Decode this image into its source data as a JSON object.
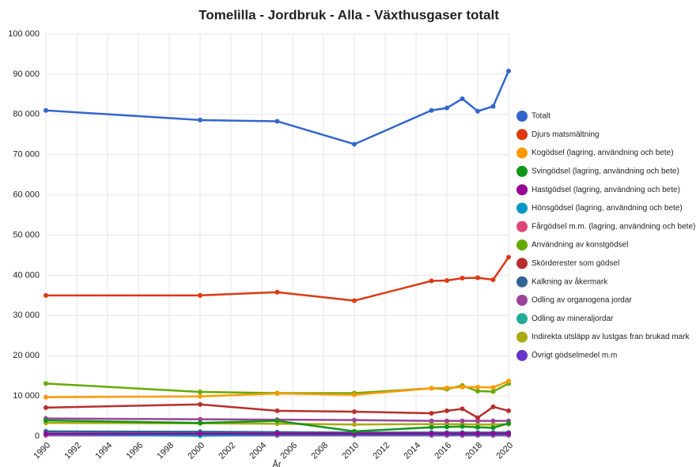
{
  "chart_data": {
    "type": "line",
    "title": "Tomelilla - Jordbruk - Alla - Växthusgaser totalt",
    "x_label": "År",
    "x": [
      1990,
      2000,
      2005,
      2010,
      2015,
      2016,
      2017,
      2018,
      2019,
      2020
    ],
    "xlim": [
      1990,
      2020
    ],
    "xticks": [
      1990,
      1992,
      1994,
      1996,
      1998,
      2000,
      2002,
      2004,
      2006,
      2008,
      2010,
      2012,
      2014,
      2016,
      2018,
      2020
    ],
    "ylim": [
      0,
      100000
    ],
    "yticks": [
      0,
      {
        "value": 10000,
        "label": "10 000"
      },
      {
        "value": 20000,
        "label": "20 000"
      },
      {
        "value": 30000,
        "label": "30 000"
      },
      {
        "value": 40000,
        "label": "40 000"
      },
      {
        "value": 50000,
        "label": "50 000"
      },
      {
        "value": 60000,
        "label": "60 000"
      },
      {
        "value": 70000,
        "label": "70 000"
      },
      {
        "value": 80000,
        "label": "80 000"
      },
      {
        "value": 90000,
        "label": "90 000"
      },
      {
        "value": 100000,
        "label": "100 000"
      }
    ],
    "grid": true,
    "legend": "right",
    "series": [
      {
        "name": "Totalt",
        "color": "#3366cc",
        "values": [
          81000,
          78600,
          78300,
          72600,
          81000,
          81600,
          83900,
          80800,
          82000,
          90800
        ]
      },
      {
        "name": "Djurs matsmältning",
        "color": "#dc3912",
        "values": [
          35000,
          35000,
          35800,
          33700,
          38600,
          38700,
          39300,
          39400,
          38900,
          44500
        ]
      },
      {
        "name": "Kogödsel (lagring, användning och bete)",
        "color": "#ff9900",
        "values": [
          9700,
          9900,
          10600,
          10300,
          11900,
          12000,
          12200,
          12200,
          12100,
          13700
        ]
      },
      {
        "name": "Svingödsel (lagring, användning och bete)",
        "color": "#109618",
        "values": [
          3900,
          3300,
          3800,
          1200,
          2200,
          2300,
          2400,
          2200,
          2100,
          3200
        ]
      },
      {
        "name": "Hastgödsel (lagring, användning och bete)",
        "color": "#990099",
        "values": [
          600,
          600,
          600,
          600,
          600,
          600,
          600,
          600,
          600,
          600
        ]
      },
      {
        "name": "Hönsgödsel (lagring, användning och bete)",
        "color": "#0099c6",
        "values": [
          500,
          100,
          400,
          400,
          400,
          400,
          400,
          400,
          400,
          400
        ]
      },
      {
        "name": "Fårgödsel m.m. (lagring, användning och bete)",
        "color": "#dd4477",
        "values": [
          300,
          300,
          300,
          300,
          300,
          300,
          300,
          300,
          300,
          300
        ]
      },
      {
        "name": "Användning av konstgödsel",
        "color": "#66aa00",
        "values": [
          13100,
          11000,
          10700,
          10700,
          11900,
          11700,
          12600,
          11200,
          11100,
          13100
        ]
      },
      {
        "name": "Skörderester som gödsel",
        "color": "#b82e2e",
        "values": [
          7100,
          7900,
          6300,
          6100,
          5700,
          6300,
          6800,
          4600,
          7300,
          6300
        ]
      },
      {
        "name": "Kalkning av åkermark",
        "color": "#316395",
        "values": [
          1200,
          1100,
          1000,
          900,
          900,
          900,
          900,
          900,
          900,
          900
        ]
      },
      {
        "name": "Odling av organogena jordar",
        "color": "#994499",
        "values": [
          4400,
          4200,
          4100,
          4000,
          3800,
          3800,
          3800,
          3800,
          3800,
          3800
        ]
      },
      {
        "name": "Odling av mineraljordar",
        "color": "#22aa99",
        "values": [
          700,
          700,
          700,
          700,
          700,
          700,
          700,
          700,
          700,
          700
        ]
      },
      {
        "name": "Indirekta utsläpp av lustgas fran brukad mark",
        "color": "#aaaa11",
        "values": [
          3300,
          3200,
          3100,
          2900,
          3000,
          3000,
          3000,
          2900,
          2900,
          3000
        ]
      },
      {
        "name": "Övrigt gödselmedel m.m",
        "color": "#6633cc",
        "values": [
          200,
          200,
          200,
          200,
          200,
          200,
          200,
          200,
          200,
          200
        ]
      }
    ]
  }
}
